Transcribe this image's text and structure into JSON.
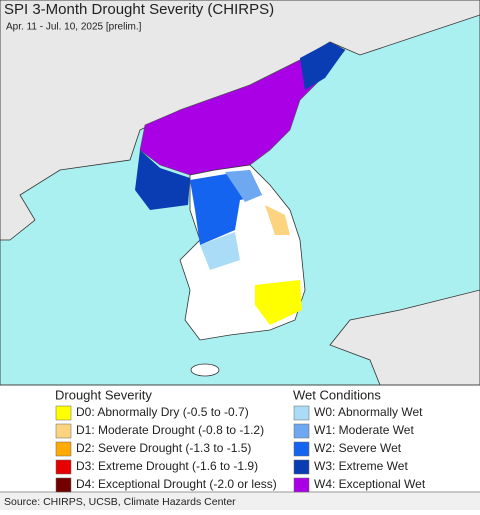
{
  "header": {
    "title": "SPI 3-Month Drought Severity (CHIRPS)",
    "subtitle": "Apr. 11 - Jul. 10, 2025 [prelim.]"
  },
  "legend": {
    "drought": {
      "title": "Drought Severity",
      "items": [
        {
          "label": "D0: Abnormally Dry (-0.5 to -0.7)",
          "color": "#ffff00"
        },
        {
          "label": "D1: Moderate Drought (-0.8 to -1.2)",
          "color": "#fcd37f"
        },
        {
          "label": "D2: Severe Drought (-1.3 to -1.5)",
          "color": "#ffaa00"
        },
        {
          "label": "D3: Extreme Drought (-1.6 to -1.9)",
          "color": "#e60000"
        },
        {
          "label": "D4: Exceptional Drought (-2.0 or less)",
          "color": "#730000"
        }
      ]
    },
    "wet": {
      "title": "Wet Conditions",
      "items": [
        {
          "label": "W0: Abnormally Wet",
          "color": "#aadcf8"
        },
        {
          "label": "W1: Moderate Wet",
          "color": "#6ea8f0"
        },
        {
          "label": "W2: Severe Wet",
          "color": "#1464f0"
        },
        {
          "label": "W3: Extreme Wet",
          "color": "#0a3cb4"
        },
        {
          "label": "W4: Exceptional Wet",
          "color": "#aa00e6"
        }
      ]
    }
  },
  "footer": {
    "source": "Source: CHIRPS, UCSB, Climate Hazards Center"
  }
}
